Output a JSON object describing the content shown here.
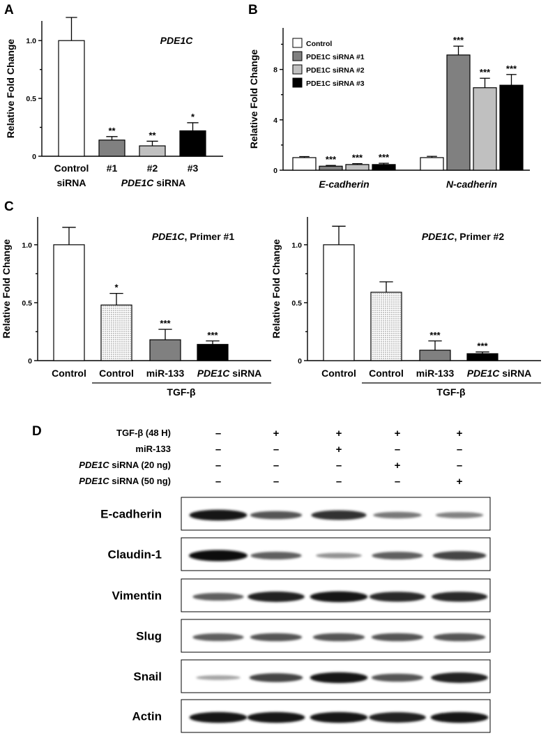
{
  "chart_data": [
    {
      "panel": "A",
      "type": "bar",
      "title": "PDE1C",
      "ylabel": "Relative Fold Change",
      "ylim": [
        0,
        1.3
      ],
      "yticks": [
        "0",
        "0.5",
        "1.0"
      ],
      "categories": [
        {
          "line1": "Control",
          "line2": "siRNA"
        },
        {
          "line1": "#1"
        },
        {
          "line1": "#2"
        },
        {
          "line1": "#3"
        }
      ],
      "group_label": {
        "italic": "PDE1C",
        "rest": " siRNA"
      },
      "values": [
        1.0,
        0.14,
        0.09,
        0.22
      ],
      "errors": [
        0.2,
        0.03,
        0.04,
        0.07
      ],
      "significance": [
        "",
        "**",
        "**",
        "*"
      ],
      "colors": [
        "#ffffff",
        "#808080",
        "#c0c0c0",
        "#000000"
      ]
    },
    {
      "panel": "B",
      "type": "bar",
      "ylabel": "Relative Fold Change",
      "ylim": [
        0,
        11
      ],
      "yticks": [
        "0",
        "4",
        "8"
      ],
      "categories": [
        "E-cadherin",
        "N-cadherin"
      ],
      "legend": {
        "position": "top-left",
        "entries": [
          "Control",
          "PDE1C siRNA #1",
          "PDE1C siRNA #2",
          "PDE1C siRNA #3"
        ],
        "colors": [
          "#ffffff",
          "#808080",
          "#c0c0c0",
          "#000000"
        ]
      },
      "series": [
        {
          "values": [
            1.0,
            1.0
          ],
          "errors": [
            0.08,
            0.1
          ],
          "significance": [
            "",
            ""
          ]
        },
        {
          "values": [
            0.32,
            9.15
          ],
          "errors": [
            0.06,
            0.7
          ],
          "significance": [
            "***",
            "***"
          ]
        },
        {
          "values": [
            0.45,
            6.55
          ],
          "errors": [
            0.07,
            0.75
          ],
          "significance": [
            "***",
            "***"
          ]
        },
        {
          "values": [
            0.45,
            6.75
          ],
          "errors": [
            0.1,
            0.85
          ],
          "significance": [
            "***",
            "***"
          ]
        }
      ]
    },
    {
      "panel": "C",
      "type": "bar",
      "title": {
        "italic": "PDE1C",
        "rest": ", Primer #1"
      },
      "ylabel": "Relative Fold Change",
      "ylim": [
        0,
        1.25
      ],
      "yticks": [
        "0",
        "0.5",
        "1.0"
      ],
      "categories": [
        "Control",
        "Control",
        "miR-133",
        {
          "italic": "PDE1C",
          "rest": " siRNA"
        }
      ],
      "group_label": "TGF-β",
      "values": [
        1.0,
        0.48,
        0.18,
        0.14
      ],
      "errors": [
        0.15,
        0.1,
        0.09,
        0.03
      ],
      "significance": [
        "",
        "*",
        "***",
        "***"
      ],
      "colors": [
        "#ffffff",
        "dots",
        "#808080",
        "#000000"
      ]
    },
    {
      "panel": "",
      "type": "bar",
      "title": {
        "italic": "PDE1C",
        "rest": ", Primer #2"
      },
      "ylabel": "Relative Fold Change",
      "ylim": [
        0,
        1.25
      ],
      "yticks": [
        "0",
        "0.5",
        "1.0"
      ],
      "categories": [
        "Control",
        "Control",
        "miR-133",
        {
          "italic": "PDE1C",
          "rest": " siRNA"
        }
      ],
      "group_label": "TGF-β",
      "values": [
        1.0,
        0.59,
        0.09,
        0.06
      ],
      "errors": [
        0.16,
        0.09,
        0.08,
        0.015
      ],
      "significance": [
        "",
        "",
        "***",
        "***"
      ],
      "colors": [
        "#ffffff",
        "dots",
        "#808080",
        "#000000"
      ]
    }
  ],
  "panel_d": {
    "letter": "D",
    "conditions": [
      {
        "label": "TGF-β (48 H)",
        "signs": [
          "–",
          "+",
          "+",
          "+",
          "+"
        ]
      },
      {
        "label": "miR-133",
        "signs": [
          "–",
          "–",
          "+",
          "–",
          "–"
        ]
      },
      {
        "italic": "PDE1C",
        "rest": " siRNA (20 ng)",
        "signs": [
          "–",
          "–",
          "–",
          "+",
          "–"
        ]
      },
      {
        "italic": "PDE1C",
        "rest": " siRNA (50 ng)",
        "signs": [
          "–",
          "–",
          "–",
          "–",
          "+"
        ]
      }
    ],
    "blots": [
      {
        "name": "E-cadherin",
        "intensity": [
          0.95,
          0.6,
          0.8,
          0.4,
          0.35
        ]
      },
      {
        "name": "Claudin-1",
        "intensity": [
          1.0,
          0.55,
          0.25,
          0.55,
          0.7
        ]
      },
      {
        "name": "Vimentin",
        "intensity": [
          0.55,
          0.9,
          0.95,
          0.85,
          0.85
        ]
      },
      {
        "name": "Slug",
        "intensity": [
          0.55,
          0.6,
          0.6,
          0.6,
          0.6
        ]
      },
      {
        "name": "Snail",
        "intensity": [
          0.15,
          0.7,
          0.95,
          0.6,
          0.9
        ]
      },
      {
        "name": "Actin",
        "intensity": [
          0.95,
          0.95,
          0.95,
          0.9,
          0.95
        ]
      }
    ]
  }
}
